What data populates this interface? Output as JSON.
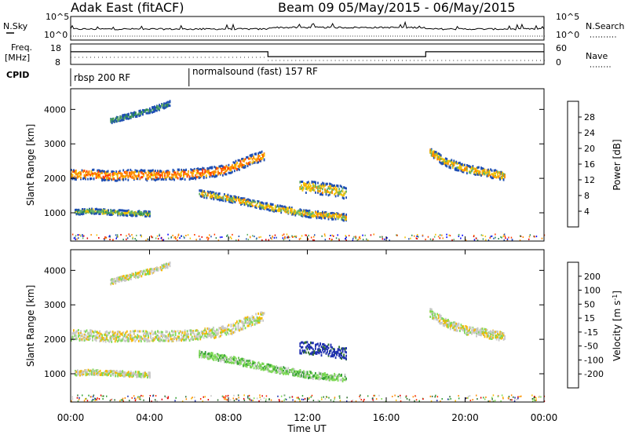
{
  "header": {
    "title": "Adak East (fitACF)",
    "beam_info": "Beam 09  05/May/2015 - 06/May/2015"
  },
  "left_labels": {
    "nsky": "N.Sky",
    "freq": "Freq.",
    "freq_unit": "[MHz]",
    "cpid": "CPID"
  },
  "right_labels": {
    "nsearch": "N.Search",
    "nave": "Nave"
  },
  "cpid": {
    "segments": [
      "rbsp 200 RF",
      "normalsound (fast) 157 RF"
    ],
    "switch_hour": 6.0
  },
  "noise": {
    "left_ticks": [
      "10^5",
      "10^0"
    ],
    "right_ticks": [
      "10^5",
      "10^0"
    ]
  },
  "freq_panel": {
    "left_ticks": [
      "18",
      "8"
    ],
    "right_ticks": [
      "60",
      "0"
    ],
    "nave_steps": [
      [
        0,
        0.62
      ],
      [
        10.0,
        0.62
      ],
      [
        10.0,
        0.38
      ],
      [
        18.0,
        0.38
      ],
      [
        18.0,
        0.62
      ],
      [
        24,
        0.62
      ]
    ]
  },
  "chart_data": [
    {
      "type": "heatmap",
      "panel": "power",
      "ylabel": "Slant Range [km]",
      "ylim": [
        180,
        4600
      ],
      "xlim": [
        0,
        24
      ],
      "yticks": [
        "1000",
        "2000",
        "3000",
        "4000"
      ],
      "colorbar": {
        "label": "Power [dB]",
        "ticks": [
          "4",
          "8",
          "12",
          "16",
          "20",
          "24",
          "28"
        ],
        "colors": [
          "#0000ff",
          "#1f4fb4",
          "#2e8b57",
          "#66b266",
          "#f2c200",
          "#ff8c00",
          "#ff3c00",
          "#e00000"
        ]
      },
      "bands": [
        {
          "label": "main",
          "x": [
            0,
            1,
            2,
            3,
            4,
            5,
            6,
            7,
            8,
            9,
            9.8
          ],
          "y": [
            2150,
            2150,
            2100,
            2130,
            2120,
            2130,
            2150,
            2200,
            2300,
            2550,
            2700
          ],
          "width": 300,
          "level": 5
        },
        {
          "label": "upper",
          "x": [
            2,
            3,
            4,
            5
          ],
          "y": [
            3700,
            3850,
            4000,
            4200
          ],
          "width": 150,
          "level": 2
        },
        {
          "label": "lower",
          "x": [
            0.2,
            1,
            2,
            3,
            4
          ],
          "y": [
            1050,
            1080,
            1050,
            1020,
            1000
          ],
          "width": 150,
          "level": 3
        },
        {
          "label": "slant",
          "x": [
            6.5,
            8,
            10,
            12,
            14
          ],
          "y": [
            1600,
            1450,
            1200,
            1000,
            900
          ],
          "width": 200,
          "level": 4
        },
        {
          "label": "blob",
          "x": [
            11.6,
            12.4,
            13.2,
            14.0
          ],
          "y": [
            1800,
            1750,
            1700,
            1600
          ],
          "width": 350,
          "level": 4
        },
        {
          "label": "east",
          "x": [
            18.2,
            19,
            20,
            21,
            22
          ],
          "y": [
            2800,
            2500,
            2300,
            2200,
            2100
          ],
          "width": 250,
          "level": 4
        }
      ]
    },
    {
      "type": "heatmap",
      "panel": "velocity",
      "ylabel": "Slant Range [km]",
      "ylim": [
        180,
        4600
      ],
      "xlim": [
        0,
        24
      ],
      "yticks": [
        "1000",
        "2000",
        "3000",
        "4000"
      ],
      "xlabel": "Time UT",
      "xticks": [
        "00:00",
        "04:00",
        "08:00",
        "12:00",
        "16:00",
        "20:00",
        "00:00"
      ],
      "colorbar": {
        "label": "Velocity [m s^-1]",
        "ticks": [
          "200",
          "100",
          "50",
          "15",
          "-15",
          "-50",
          "-100",
          "-200"
        ],
        "colors": [
          "#2030b0",
          "#2f6f2f",
          "#35a035",
          "#7ed957",
          "#c8c8c8",
          "#f5b800",
          "#ff8c00",
          "#ff3000",
          "#e00000"
        ]
      },
      "bands": [
        {
          "label": "main",
          "x": [
            0,
            1,
            2,
            3,
            4,
            5,
            6,
            7,
            8,
            9,
            9.8
          ],
          "y": [
            2150,
            2150,
            2100,
            2130,
            2120,
            2130,
            2150,
            2200,
            2300,
            2550,
            2700
          ],
          "width": 300,
          "level": 4
        },
        {
          "label": "upper",
          "x": [
            2,
            3,
            4,
            5
          ],
          "y": [
            3700,
            3850,
            4000,
            4200
          ],
          "width": 150,
          "level": 4
        },
        {
          "label": "lower",
          "x": [
            0.2,
            1,
            2,
            3,
            4
          ],
          "y": [
            1050,
            1080,
            1050,
            1020,
            1000
          ],
          "width": 150,
          "level": 4
        },
        {
          "label": "slant",
          "x": [
            6.5,
            8,
            10,
            12,
            14
          ],
          "y": [
            1600,
            1450,
            1200,
            1000,
            900
          ],
          "width": 200,
          "level": 3
        },
        {
          "label": "blob",
          "x": [
            11.6,
            12.4,
            13.2,
            14.0
          ],
          "y": [
            1800,
            1750,
            1700,
            1600
          ],
          "width": 350,
          "level": 0
        },
        {
          "label": "east",
          "x": [
            18.2,
            19,
            20,
            21,
            22
          ],
          "y": [
            2800,
            2500,
            2300,
            2200,
            2100
          ],
          "width": 250,
          "level": 4
        }
      ]
    }
  ]
}
